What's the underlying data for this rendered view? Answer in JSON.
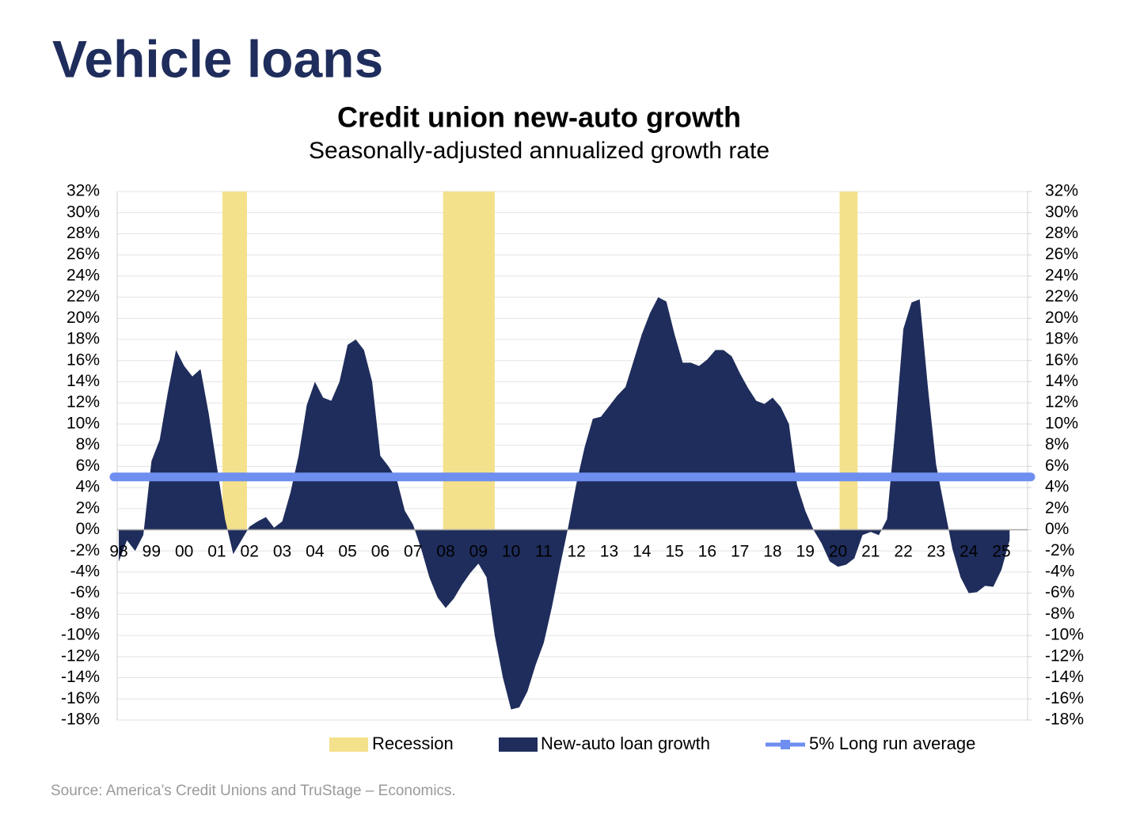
{
  "header": {
    "title": "Vehicle loans"
  },
  "chart_data": {
    "type": "area",
    "title": "Credit union new-auto growth",
    "subtitle": "Seasonally-adjusted annualized growth rate",
    "x": [
      1998,
      1998.25,
      1998.5,
      1998.75,
      1999,
      1999.25,
      1999.5,
      1999.75,
      2000,
      2000.25,
      2000.5,
      2000.75,
      2001,
      2001.25,
      2001.5,
      2001.75,
      2002,
      2002.25,
      2002.5,
      2002.75,
      2003,
      2003.25,
      2003.5,
      2003.75,
      2004,
      2004.25,
      2004.5,
      2004.75,
      2005,
      2005.25,
      2005.5,
      2005.75,
      2006,
      2006.25,
      2006.5,
      2006.75,
      2007,
      2007.25,
      2007.5,
      2007.75,
      2008,
      2008.25,
      2008.5,
      2008.75,
      2009,
      2009.25,
      2009.5,
      2009.75,
      2010,
      2010.25,
      2010.5,
      2010.75,
      2011,
      2011.25,
      2011.5,
      2011.75,
      2012,
      2012.25,
      2012.5,
      2012.75,
      2013,
      2013.25,
      2013.5,
      2013.75,
      2014,
      2014.25,
      2014.5,
      2014.75,
      2015,
      2015.25,
      2015.5,
      2015.75,
      2016,
      2016.25,
      2016.5,
      2016.75,
      2017,
      2017.25,
      2017.5,
      2017.75,
      2018,
      2018.25,
      2018.5,
      2018.75,
      2019,
      2019.25,
      2019.5,
      2019.75,
      2020,
      2020.25,
      2020.5,
      2020.75,
      2021,
      2021.25,
      2021.5,
      2021.75,
      2022,
      2022.25,
      2022.5,
      2022.75,
      2023,
      2023.25,
      2023.5,
      2023.75,
      2024,
      2024.25,
      2024.5,
      2024.75,
      2025,
      2025.25
    ],
    "xlim": [
      1997.95,
      2025.8
    ],
    "xticks": [
      {
        "value": 1998,
        "label": "98"
      },
      {
        "value": 1999,
        "label": "99"
      },
      {
        "value": 2000,
        "label": "00"
      },
      {
        "value": 2001,
        "label": "01"
      },
      {
        "value": 2002,
        "label": "02"
      },
      {
        "value": 2003,
        "label": "03"
      },
      {
        "value": 2004,
        "label": "04"
      },
      {
        "value": 2005,
        "label": "05"
      },
      {
        "value": 2006,
        "label": "06"
      },
      {
        "value": 2007,
        "label": "07"
      },
      {
        "value": 2008,
        "label": "08"
      },
      {
        "value": 2009,
        "label": "09"
      },
      {
        "value": 2010,
        "label": "10"
      },
      {
        "value": 2011,
        "label": "11"
      },
      {
        "value": 2012,
        "label": "12"
      },
      {
        "value": 2013,
        "label": "13"
      },
      {
        "value": 2014,
        "label": "14"
      },
      {
        "value": 2015,
        "label": "15"
      },
      {
        "value": 2016,
        "label": "16"
      },
      {
        "value": 2017,
        "label": "17"
      },
      {
        "value": 2018,
        "label": "18"
      },
      {
        "value": 2019,
        "label": "19"
      },
      {
        "value": 2020,
        "label": "20"
      },
      {
        "value": 2021,
        "label": "21"
      },
      {
        "value": 2022,
        "label": "22"
      },
      {
        "value": 2023,
        "label": "23"
      },
      {
        "value": 2024,
        "label": "24"
      },
      {
        "value": 2025,
        "label": "25"
      }
    ],
    "ylim": [
      -18,
      32
    ],
    "yticks": [
      {
        "value": -18,
        "label": "-18%"
      },
      {
        "value": -16,
        "label": "-16%"
      },
      {
        "value": -14,
        "label": "-14%"
      },
      {
        "value": -12,
        "label": "-12%"
      },
      {
        "value": -10,
        "label": "-10%"
      },
      {
        "value": -8,
        "label": "-8%"
      },
      {
        "value": -6,
        "label": "-6%"
      },
      {
        "value": -4,
        "label": "-4%"
      },
      {
        "value": -2,
        "label": "-2%"
      },
      {
        "value": 0,
        "label": "0%"
      },
      {
        "value": 2,
        "label": "2%"
      },
      {
        "value": 4,
        "label": "4%"
      },
      {
        "value": 6,
        "label": "6%"
      },
      {
        "value": 8,
        "label": "8%"
      },
      {
        "value": 10,
        "label": "10%"
      },
      {
        "value": 12,
        "label": "12%"
      },
      {
        "value": 14,
        "label": "14%"
      },
      {
        "value": 16,
        "label": "16%"
      },
      {
        "value": 18,
        "label": "18%"
      },
      {
        "value": 20,
        "label": "20%"
      },
      {
        "value": 22,
        "label": "22%"
      },
      {
        "value": 24,
        "label": "24%"
      },
      {
        "value": 26,
        "label": "26%"
      },
      {
        "value": 28,
        "label": "28%"
      },
      {
        "value": 30,
        "label": "30%"
      },
      {
        "value": 32,
        "label": "32%"
      }
    ],
    "y2lim": [
      -18,
      32
    ],
    "y2ticks": [
      {
        "value": -18,
        "label": "-18%"
      },
      {
        "value": -16,
        "label": "-16%"
      },
      {
        "value": -14,
        "label": "-14%"
      },
      {
        "value": -12,
        "label": "-12%"
      },
      {
        "value": -10,
        "label": "-10%"
      },
      {
        "value": -8,
        "label": "-8%"
      },
      {
        "value": -6,
        "label": "-6%"
      },
      {
        "value": -4,
        "label": "-4%"
      },
      {
        "value": -2,
        "label": "-2%"
      },
      {
        "value": 0,
        "label": "0%"
      },
      {
        "value": 2,
        "label": "2%"
      },
      {
        "value": 4,
        "label": "4%"
      },
      {
        "value": 6,
        "label": "6%"
      },
      {
        "value": 8,
        "label": "8%"
      },
      {
        "value": 10,
        "label": "10%"
      },
      {
        "value": 12,
        "label": "12%"
      },
      {
        "value": 14,
        "label": "14%"
      },
      {
        "value": 16,
        "label": "16%"
      },
      {
        "value": 18,
        "label": "18%"
      },
      {
        "value": 20,
        "label": "20%"
      },
      {
        "value": 22,
        "label": "22%"
      },
      {
        "value": 24,
        "label": "24%"
      },
      {
        "value": 26,
        "label": "26%"
      },
      {
        "value": 28,
        "label": "28%"
      },
      {
        "value": 30,
        "label": "30%"
      },
      {
        "value": 32,
        "label": "32%"
      }
    ],
    "grid": true,
    "legend": "bottom",
    "recession": {
      "name": "Recession",
      "color": "#f4e18b",
      "periods": [
        [
          2001.17,
          2001.92
        ],
        [
          2007.92,
          2009.5
        ],
        [
          2020.05,
          2020.6
        ]
      ]
    },
    "series": [
      {
        "name": "New-auto loan growth",
        "color": "#1f2d5c",
        "values": [
          -3,
          -1,
          -2,
          -0.5,
          6.5,
          8.5,
          13,
          17,
          15.5,
          14.5,
          15.2,
          11,
          6,
          1,
          -2.3,
          -1,
          0.3,
          0.8,
          1.2,
          0.2,
          0.8,
          3.5,
          7,
          11.8,
          14,
          12.5,
          12.2,
          14,
          17.5,
          18,
          17,
          14,
          7,
          6,
          4.8,
          1.8,
          0.5,
          -1.8,
          -4.5,
          -6.4,
          -7.4,
          -6.5,
          -5.2,
          -4.1,
          -3.2,
          -4.5,
          -10,
          -14,
          -17,
          -16.8,
          -15.3,
          -12.8,
          -10.7,
          -7.3,
          -3.4,
          0.3,
          4.4,
          7.8,
          10.5,
          10.7,
          11.7,
          12.7,
          13.5,
          16,
          18.5,
          20.5,
          22,
          21.6,
          18.5,
          15.8,
          15.8,
          15.5,
          16.1,
          17,
          17,
          16.4,
          14.8,
          13.4,
          12.2,
          11.9,
          12.5,
          11.6,
          10,
          4.2,
          1.8,
          0,
          -1.3,
          -3,
          -3.5,
          -3.3,
          -2.7,
          -0.5,
          -0.2,
          -0.5,
          1,
          9.5,
          19,
          21.5,
          21.8,
          13.5,
          6.2,
          2.2,
          -1.8,
          -4.5,
          -6,
          -5.9,
          -5.3,
          -5.4,
          -3.8,
          -1
        ]
      }
    ],
    "reference_line": {
      "name": "5% Long run average",
      "color": "#6e8ef0",
      "value": 5
    }
  },
  "footer": {
    "source": "Source: America’s Credit Unions and TruStage – Economics."
  }
}
